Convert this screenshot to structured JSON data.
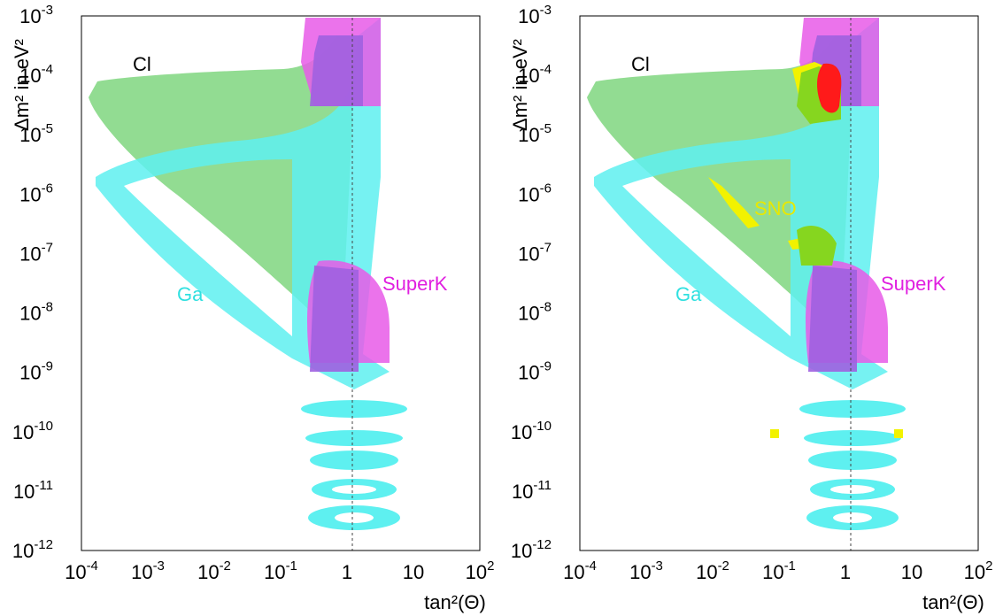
{
  "chart_data": [
    {
      "type": "contour",
      "title": "",
      "xlabel": "tan²(Θ)",
      "ylabel": "Δm² in eV²",
      "x_scale": "log",
      "y_scale": "log",
      "xlim": [
        0.0001,
        100
      ],
      "ylim": [
        1e-12,
        0.001
      ],
      "x_ticks": [
        {
          "base": "10",
          "exp": "-4"
        },
        {
          "base": "10",
          "exp": "-3"
        },
        {
          "base": "10",
          "exp": "-2"
        },
        {
          "base": "10",
          "exp": "-1"
        },
        {
          "base": "1",
          "exp": ""
        },
        {
          "base": "10",
          "exp": ""
        },
        {
          "base": "10",
          "exp": "2"
        }
      ],
      "y_ticks": [
        {
          "base": "10",
          "exp": "-3"
        },
        {
          "base": "10",
          "exp": "-4"
        },
        {
          "base": "10",
          "exp": "-5"
        },
        {
          "base": "10",
          "exp": "-6"
        },
        {
          "base": "10",
          "exp": "-7"
        },
        {
          "base": "10",
          "exp": "-8"
        },
        {
          "base": "10",
          "exp": "-9"
        },
        {
          "base": "10",
          "exp": "-10"
        },
        {
          "base": "10",
          "exp": "-11"
        },
        {
          "base": "10",
          "exp": "-12"
        }
      ],
      "reference_line": {
        "x": 1,
        "style": "dashed"
      },
      "regions": [
        {
          "label": "Ga",
          "color": "#5ef0f0",
          "label_pos": [
            0.003,
            1.5e-08
          ]
        },
        {
          "label": "Cl",
          "color": "#7fd67f",
          "label_pos": [
            0.0004,
            0.00012
          ]
        },
        {
          "label": "SuperK",
          "color": "#e85ae8",
          "label_pos": [
            3.0,
            1.8e-08
          ]
        }
      ]
    },
    {
      "type": "contour",
      "title": "",
      "xlabel": "tan²(Θ)",
      "ylabel": "Δm² in eV²",
      "x_scale": "log",
      "y_scale": "log",
      "xlim": [
        0.0001,
        100
      ],
      "ylim": [
        1e-12,
        0.001
      ],
      "x_ticks": [
        {
          "base": "10",
          "exp": "-4"
        },
        {
          "base": "10",
          "exp": "-3"
        },
        {
          "base": "10",
          "exp": "-2"
        },
        {
          "base": "10",
          "exp": "-1"
        },
        {
          "base": "1",
          "exp": ""
        },
        {
          "base": "10",
          "exp": ""
        },
        {
          "base": "10",
          "exp": "2"
        }
      ],
      "y_ticks": [
        {
          "base": "10",
          "exp": "-3"
        },
        {
          "base": "10",
          "exp": "-4"
        },
        {
          "base": "10",
          "exp": "-5"
        },
        {
          "base": "10",
          "exp": "-6"
        },
        {
          "base": "10",
          "exp": "-7"
        },
        {
          "base": "10",
          "exp": "-8"
        },
        {
          "base": "10",
          "exp": "-9"
        },
        {
          "base": "10",
          "exp": "-10"
        },
        {
          "base": "10",
          "exp": "-11"
        },
        {
          "base": "10",
          "exp": "-12"
        }
      ],
      "reference_line": {
        "x": 1,
        "style": "dashed"
      },
      "regions": [
        {
          "label": "Ga",
          "color": "#5ef0f0",
          "label_pos": [
            0.003,
            1.5e-08
          ]
        },
        {
          "label": "Cl",
          "color": "#7fd67f",
          "label_pos": [
            0.0004,
            0.00012
          ]
        },
        {
          "label": "SuperK",
          "color": "#e85ae8",
          "label_pos": [
            3.0,
            1.8e-08
          ]
        },
        {
          "label": "SNO",
          "color": "#f2f200",
          "label_pos": [
            0.06,
            1.3e-06
          ]
        }
      ],
      "combined_allowed": {
        "color": "#ff1a1a",
        "center": [
          0.4,
          6e-05
        ]
      }
    }
  ],
  "colors": {
    "ga": "#5ef0f0",
    "cl": "#7fd67f",
    "superk": "#e85ae8",
    "overlap": "#a060e0",
    "sno": "#f2f200",
    "sno_overlap": "#86d61f",
    "combined": "#ff1a1a",
    "ga_label": "#30e0e0",
    "superk_label": "#e020e0",
    "sno_label": "#e8e800"
  }
}
